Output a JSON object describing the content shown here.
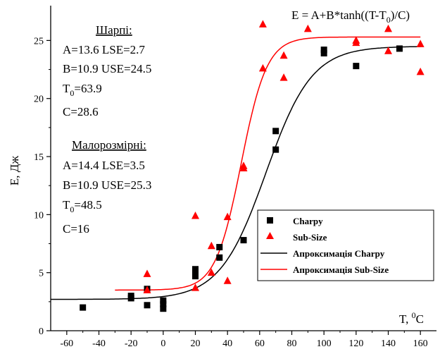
{
  "chart_data": {
    "type": "scatter",
    "formula": {
      "text": "E = A+B*tanh((T-T",
      "sub": "0",
      "tail": ")/C)"
    },
    "xlabel": {
      "text": "T, ",
      "sup": "0",
      "tail": "C"
    },
    "ylabel": "E, Дж",
    "xlim": [
      -70,
      170
    ],
    "ylim": [
      0,
      28
    ],
    "x_ticks": [
      -60,
      -40,
      -20,
      0,
      20,
      40,
      60,
      80,
      100,
      120,
      140,
      160
    ],
    "y_ticks": [
      0,
      5,
      10,
      15,
      20,
      25
    ],
    "grid": false,
    "legend_position": "lower-right",
    "annotations": {
      "charpy": {
        "title": "Шарпі:",
        "line1": "A=13.6  LSE=2.7",
        "line2": "B=10.9  USE=24.5",
        "t0": {
          "pre": "T",
          "sub": "0",
          "post": "=63.9"
        },
        "c": "C=28.6"
      },
      "subsize": {
        "title": "Малорозмірні:",
        "line1": "A=14.4  LSE=3.5",
        "line2": "B=10.9  USE=25.3",
        "t0": {
          "pre": "T",
          "sub": "0",
          "post": "=48.5"
        },
        "c": "C=16"
      }
    },
    "series": [
      {
        "name": "Charpy",
        "marker": "square",
        "color": "#000000",
        "points": [
          [
            -50,
            2.0
          ],
          [
            -20,
            2.8
          ],
          [
            -20,
            3.0
          ],
          [
            -10,
            2.2
          ],
          [
            -10,
            3.6
          ],
          [
            0,
            1.9
          ],
          [
            0,
            2.3
          ],
          [
            0,
            2.6
          ],
          [
            20,
            4.7
          ],
          [
            20,
            5.0
          ],
          [
            20,
            5.3
          ],
          [
            35,
            6.3
          ],
          [
            35,
            7.2
          ],
          [
            50,
            7.8
          ],
          [
            70,
            15.6
          ],
          [
            70,
            17.2
          ],
          [
            100,
            23.9
          ],
          [
            100,
            24.2
          ],
          [
            120,
            22.8
          ],
          [
            147,
            24.3
          ]
        ]
      },
      {
        "name": "Sub-Size",
        "marker": "triangle",
        "color": "#ff0000",
        "points": [
          [
            -10,
            3.5
          ],
          [
            -10,
            4.9
          ],
          [
            20,
            3.7
          ],
          [
            20,
            9.9
          ],
          [
            30,
            7.3
          ],
          [
            30,
            5.0
          ],
          [
            40,
            9.8
          ],
          [
            40,
            4.3
          ],
          [
            50,
            14.0
          ],
          [
            50,
            14.2
          ],
          [
            62,
            26.4
          ],
          [
            62,
            22.6
          ],
          [
            75,
            23.7
          ],
          [
            75,
            21.8
          ],
          [
            90,
            26.0
          ],
          [
            120,
            25.0
          ],
          [
            120,
            24.8
          ],
          [
            140,
            26.0
          ],
          [
            140,
            24.1
          ],
          [
            160,
            24.7
          ],
          [
            160,
            22.3
          ]
        ]
      }
    ],
    "fits": [
      {
        "name": "Апроксимація Charpy",
        "color": "#000000",
        "A": 13.6,
        "B": 10.9,
        "T0": 63.9,
        "C": 28.6,
        "range": [
          -70,
          160
        ]
      },
      {
        "name": "Апроксимація Sub-Size",
        "color": "#ff0000",
        "A": 14.4,
        "B": 10.9,
        "T0": 48.5,
        "C": 16,
        "range": [
          -30,
          160
        ]
      }
    ]
  }
}
